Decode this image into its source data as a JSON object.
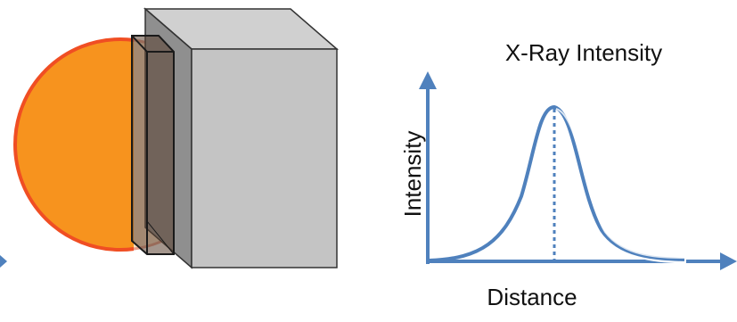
{
  "plot": {
    "title": "X-Ray Intensity",
    "y_label": "Intensity",
    "x_label": "Distance"
  }
}
